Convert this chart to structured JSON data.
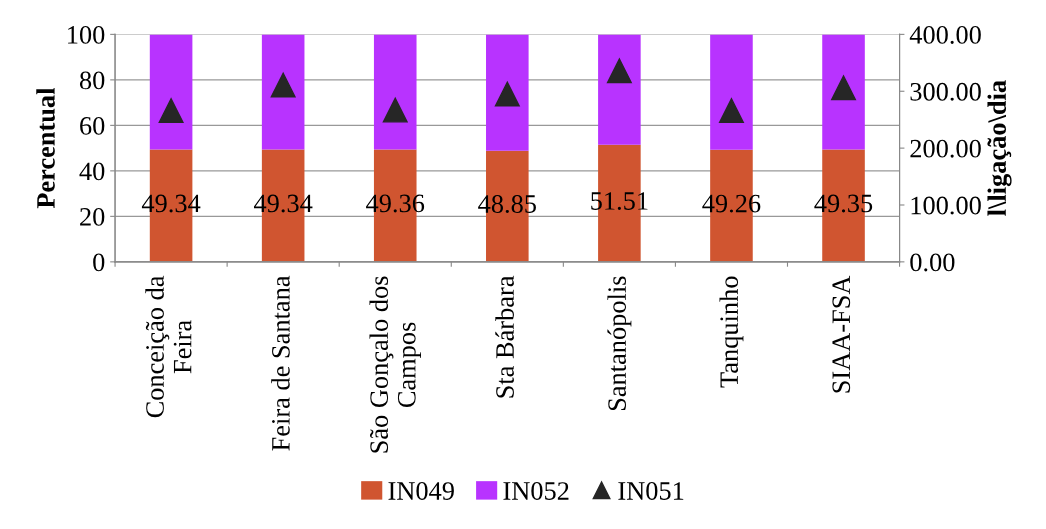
{
  "chart_data": {
    "type": "bar",
    "stacked": true,
    "ylabel": "Percentual",
    "y2label": "l\\ligação\\dia",
    "categories": [
      "Conceição da\nFeira",
      "Feira de Santana",
      "São Gonçalo dos\nCampos",
      "Sta Bárbara",
      "Santanópolis",
      "Tanquinho",
      "SIAA-FSA"
    ],
    "series": [
      {
        "name": "IN049",
        "color": "#d05530",
        "values": [
          49.34,
          49.34,
          49.36,
          48.85,
          51.51,
          49.26,
          49.35
        ],
        "value_labels": [
          "49.34",
          "49.34",
          "49.36",
          "48.85",
          "51.51",
          "49.26",
          "49.35"
        ]
      },
      {
        "name": "IN052",
        "color": "#b833ff",
        "values": [
          50.66,
          50.66,
          50.64,
          51.15,
          48.49,
          50.74,
          50.65
        ]
      },
      {
        "name": "IN051",
        "type": "scatter",
        "axis": "y2",
        "color": "#262626",
        "marker": "triangle",
        "values": [
          266,
          311,
          267,
          295,
          336,
          266,
          306
        ]
      }
    ],
    "ylim": [
      0,
      100
    ],
    "yticks": [
      0,
      20,
      40,
      60,
      80,
      100
    ],
    "y2lim": [
      0,
      400
    ],
    "y2ticks": [
      {
        "value": 0,
        "label": "0.00"
      },
      {
        "value": 100,
        "label": "100.00"
      },
      {
        "value": 200,
        "label": "200.00"
      },
      {
        "value": 300,
        "label": "300.00"
      },
      {
        "value": 400,
        "label": "400.00"
      }
    ],
    "grid": "y",
    "legend": "bottom"
  }
}
